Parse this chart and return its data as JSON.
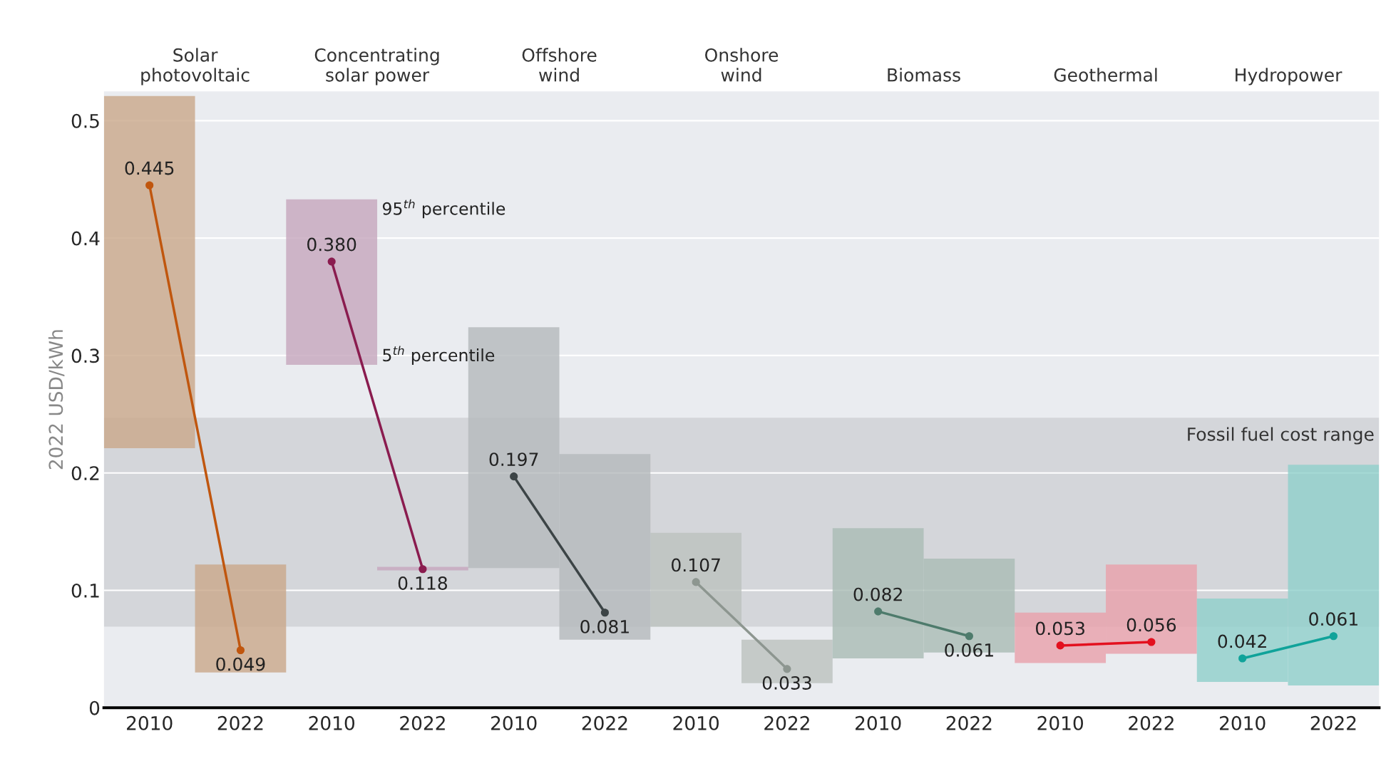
{
  "chart_data": {
    "type": "bar",
    "ylabel": "2022 USD/kWh",
    "categories": [
      "2010",
      "2022",
      "2010",
      "2022",
      "2010",
      "2022",
      "2010",
      "2022",
      "2010",
      "2022",
      "2010",
      "2022",
      "2010",
      "2022"
    ],
    "ylim": [
      0,
      0.525
    ],
    "yticks": [
      0,
      0.1,
      0.2,
      0.3,
      0.4,
      0.5
    ],
    "grid": "y",
    "series": [
      {
        "base": [
          0.221,
          0.03,
          0.292,
          0.117,
          0.119,
          0.058,
          0.069,
          0.021,
          0.042,
          0.047,
          0.038,
          0.046,
          0.022,
          0.019
        ],
        "values": [
          0.3,
          0.092,
          0.141,
          0.003,
          0.205,
          0.158,
          0.08,
          0.037,
          0.111,
          0.08,
          0.043,
          0.076,
          0.071,
          0.188
        ],
        "colors": [
          "#c9a78a",
          "#c9a78a",
          "#c6a6bd",
          "#c6a6bd",
          "#b4b9bc",
          "#b4b9bc",
          "#bcc2be",
          "#bcc2be",
          "#a9bbb4",
          "#a9bbb4",
          "#e8a0aa",
          "#e8a0aa",
          "#8ecfca",
          "#8ecfca"
        ]
      },
      {
        "type": "line",
        "color": "#c0560e",
        "values": [
          0.445,
          0.049,
          null,
          null,
          null,
          null,
          null,
          null,
          null,
          null,
          null,
          null,
          null,
          null
        ],
        "value_labels": [
          "0.445",
          "0.049",
          null,
          null,
          null,
          null,
          null,
          null,
          null,
          null,
          null,
          null,
          null,
          null
        ]
      },
      {
        "type": "line",
        "color": "#8a1c4f",
        "values": [
          null,
          null,
          0.38,
          0.118,
          null,
          null,
          null,
          null,
          null,
          null,
          null,
          null,
          null,
          null
        ],
        "value_labels": [
          null,
          null,
          "0.380",
          "0.118",
          null,
          null,
          null,
          null,
          null,
          null,
          null,
          null,
          null,
          null
        ]
      },
      {
        "type": "line",
        "color": "#3c4446",
        "values": [
          null,
          null,
          null,
          null,
          0.197,
          0.081,
          null,
          null,
          null,
          null,
          null,
          null,
          null,
          null
        ],
        "value_labels": [
          null,
          null,
          null,
          null,
          "0.197",
          "0.081",
          null,
          null,
          null,
          null,
          null,
          null,
          null,
          null
        ]
      },
      {
        "type": "line",
        "color": "#8d9690",
        "values": [
          null,
          null,
          null,
          null,
          null,
          null,
          0.107,
          0.033,
          null,
          null,
          null,
          null,
          null,
          null
        ],
        "value_labels": [
          null,
          null,
          null,
          null,
          null,
          null,
          "0.107",
          "0.033",
          null,
          null,
          null,
          null,
          null,
          null
        ]
      },
      {
        "type": "line",
        "color": "#4e7b6c",
        "values": [
          null,
          null,
          null,
          null,
          null,
          null,
          null,
          null,
          0.082,
          0.061,
          null,
          null,
          null,
          null
        ],
        "value_labels": [
          null,
          null,
          null,
          null,
          null,
          null,
          null,
          null,
          "0.082",
          "0.061",
          null,
          null,
          null,
          null
        ]
      },
      {
        "type": "line",
        "color": "#e3101e",
        "values": [
          null,
          null,
          null,
          null,
          null,
          null,
          null,
          null,
          null,
          null,
          0.053,
          0.056,
          null,
          null
        ],
        "value_labels": [
          null,
          null,
          null,
          null,
          null,
          null,
          null,
          null,
          null,
          null,
          "0.053",
          "0.056",
          null,
          null
        ]
      },
      {
        "type": "line",
        "color": "#10a39a",
        "values": [
          null,
          null,
          null,
          null,
          null,
          null,
          null,
          null,
          null,
          null,
          null,
          null,
          0.042,
          0.061
        ],
        "value_labels": [
          null,
          null,
          null,
          null,
          null,
          null,
          null,
          null,
          null,
          null,
          null,
          null,
          "0.042",
          "0.061"
        ]
      }
    ],
    "marker": "circle",
    "bands": [
      {
        "axis": "y",
        "from": 0.069,
        "to": 0.247,
        "label": "Fossil fuel cost range",
        "color": "#d4d6da"
      }
    ],
    "annotations": [
      "Solar\nphotovoltaic",
      "Concentrating\nsolar power",
      "Offshore\nwind",
      "Onshore\nwind",
      "Biomass",
      "Geothermal",
      "Hydropower",
      "95$^{th}$ percentile",
      "5$^{th}$ percentile"
    ]
  }
}
